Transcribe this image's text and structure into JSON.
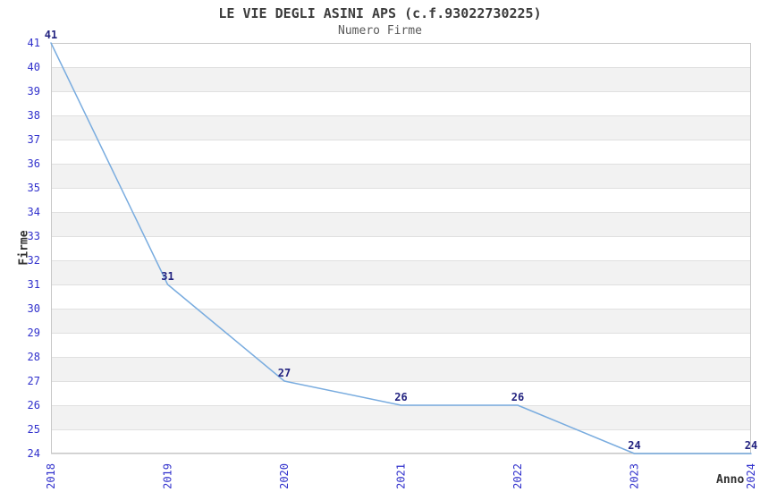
{
  "chart_data": {
    "type": "line",
    "title": "LE VIE DEGLI ASINI APS (c.f.93022730225)",
    "subtitle": "Numero Firme",
    "xlabel": "Anno",
    "ylabel": "Firme",
    "categories": [
      "2018",
      "2019",
      "2020",
      "2021",
      "2022",
      "2023",
      "2024"
    ],
    "series": [
      {
        "name": "Numero Firme",
        "values": [
          41,
          31,
          27,
          26,
          26,
          24,
          24
        ]
      }
    ],
    "ylim": [
      24,
      41
    ],
    "y_tick_step": 1,
    "grid": "horizontal-only",
    "legend_position": "none",
    "band_style": "alternating-horizontal",
    "colors": {
      "line": "#79ACDF",
      "tick_label": "#3030CC",
      "value_label": "#232380",
      "band_gray": "#F2F2F2",
      "grid_line": "#E0E0E0",
      "border": "#C8C8C8",
      "title": "#3C3C3C",
      "subtitle": "#5A5A5A",
      "axis_title": "#303030",
      "background": "#FFFFFF"
    }
  }
}
